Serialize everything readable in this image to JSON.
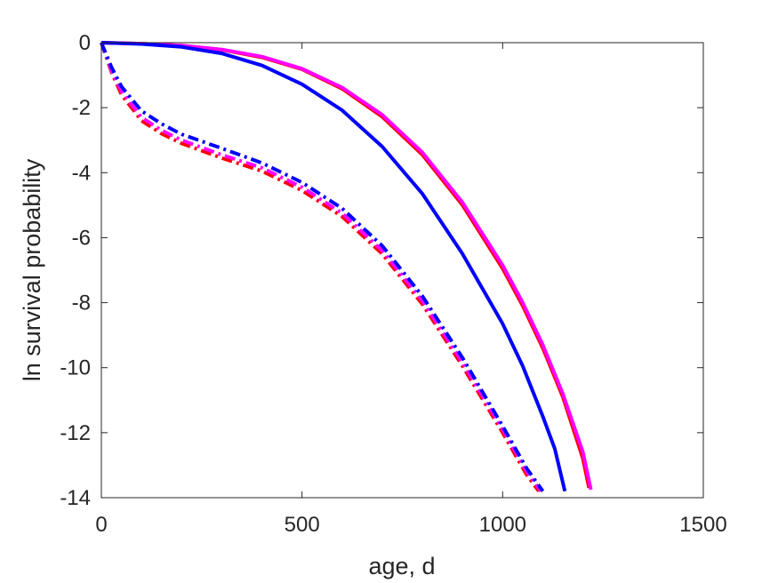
{
  "chart_data": {
    "type": "line",
    "title": "",
    "xlabel": "age, d",
    "ylabel": "ln survival probability",
    "xlim": [
      0,
      1500
    ],
    "ylim": [
      -14,
      0
    ],
    "xticks": [
      0,
      500,
      1000,
      1500
    ],
    "xtick_labels": [
      "0",
      "500",
      "1000",
      "1500"
    ],
    "yticks": [
      0,
      -2,
      -4,
      -6,
      -8,
      -10,
      -12,
      -14
    ],
    "ytick_labels": [
      "0",
      "-2",
      "-4",
      "-6",
      "-8",
      "-10",
      "-12",
      "-14"
    ],
    "grid": false,
    "legend": "none",
    "series": [
      {
        "color": "#ff0000",
        "style": "solid",
        "x": [
          0,
          100,
          200,
          300,
          400,
          500,
          600,
          700,
          800,
          900,
          1000,
          1050,
          1100,
          1150,
          1200,
          1215
        ],
        "y": [
          0,
          -0.03,
          -0.09,
          -0.22,
          -0.45,
          -0.82,
          -1.42,
          -2.28,
          -3.45,
          -5.0,
          -6.95,
          -8.1,
          -9.4,
          -10.9,
          -12.8,
          -13.7
        ]
      },
      {
        "color": "#ff00ff",
        "style": "solid",
        "x": [
          0,
          100,
          200,
          300,
          400,
          500,
          600,
          700,
          800,
          900,
          1000,
          1050,
          1100,
          1150,
          1200,
          1220
        ],
        "y": [
          0,
          -0.03,
          -0.09,
          -0.21,
          -0.43,
          -0.8,
          -1.38,
          -2.22,
          -3.38,
          -4.92,
          -6.85,
          -8.0,
          -9.3,
          -10.8,
          -12.6,
          -13.75
        ]
      },
      {
        "color": "#0000ff",
        "style": "solid",
        "x": [
          0,
          100,
          200,
          300,
          400,
          500,
          600,
          700,
          800,
          900,
          1000,
          1050,
          1100,
          1130,
          1155
        ],
        "y": [
          0,
          -0.04,
          -0.13,
          -0.33,
          -0.7,
          -1.28,
          -2.08,
          -3.2,
          -4.65,
          -6.5,
          -8.65,
          -9.95,
          -11.5,
          -12.5,
          -13.8
        ]
      },
      {
        "color": "#ff0000",
        "style": "dashdot",
        "x": [
          0,
          25,
          50,
          100,
          150,
          200,
          300,
          400,
          500,
          600,
          700,
          800,
          900,
          1000,
          1060,
          1090
        ],
        "y": [
          0,
          -0.9,
          -1.6,
          -2.4,
          -2.8,
          -3.1,
          -3.55,
          -3.95,
          -4.55,
          -5.35,
          -6.5,
          -8.05,
          -9.95,
          -12.0,
          -13.3,
          -13.8
        ]
      },
      {
        "color": "#ff00ff",
        "style": "dashdot",
        "x": [
          0,
          25,
          50,
          100,
          150,
          200,
          300,
          400,
          500,
          600,
          700,
          800,
          900,
          1000,
          1060,
          1095
        ],
        "y": [
          0,
          -0.85,
          -1.5,
          -2.3,
          -2.7,
          -3.0,
          -3.45,
          -3.85,
          -4.45,
          -5.25,
          -6.4,
          -7.95,
          -9.85,
          -11.9,
          -13.2,
          -13.8
        ]
      },
      {
        "color": "#0000ff",
        "style": "dashdot",
        "x": [
          0,
          25,
          50,
          100,
          150,
          200,
          300,
          400,
          500,
          600,
          700,
          800,
          900,
          1000,
          1060,
          1100
        ],
        "y": [
          0,
          -0.75,
          -1.35,
          -2.1,
          -2.5,
          -2.82,
          -3.25,
          -3.7,
          -4.3,
          -5.1,
          -6.25,
          -7.8,
          -9.7,
          -11.8,
          -13.1,
          -13.8
        ]
      }
    ]
  }
}
